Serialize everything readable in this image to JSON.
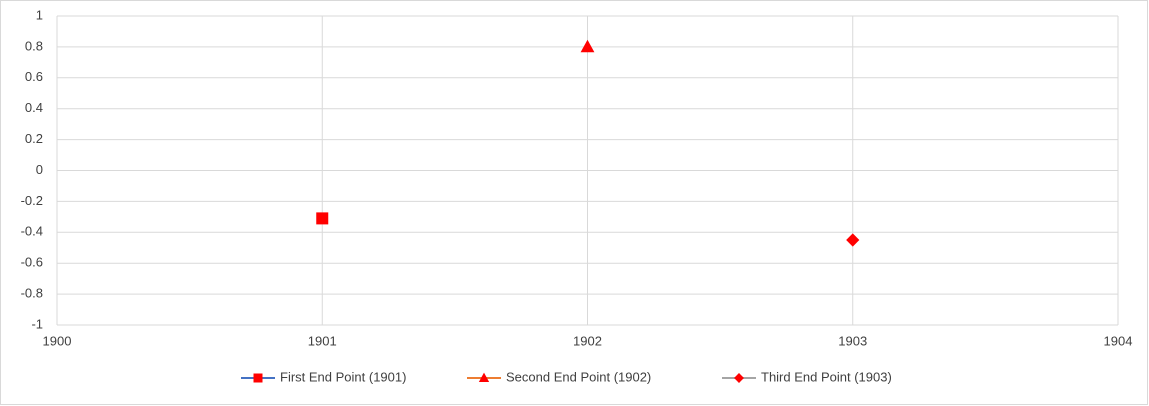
{
  "chart_data": {
    "type": "scatter",
    "xlim": [
      1900,
      1904
    ],
    "xticks": [
      1900,
      1901,
      1902,
      1903,
      1904
    ],
    "ylim": [
      -1,
      1
    ],
    "yticks": [
      -1,
      -0.8,
      -0.6,
      -0.4,
      -0.2,
      0,
      0.2,
      0.4,
      0.6,
      0.8,
      1
    ],
    "grid": true,
    "legend": "bottom",
    "series": [
      {
        "name": "First End Point (1901)",
        "color": "#4472c4",
        "marker_color": "#ff0000",
        "marker": "square",
        "x": [
          1901
        ],
        "values": [
          -0.31
        ]
      },
      {
        "name": "Second End Point (1902)",
        "color": "#ed7d31",
        "marker_color": "#ff0000",
        "marker": "triangle",
        "x": [
          1902
        ],
        "values": [
          0.8
        ]
      },
      {
        "name": "Third End Point (1903)",
        "color": "#a5a5a5",
        "marker_color": "#ff0000",
        "marker": "diamond",
        "x": [
          1903
        ],
        "values": [
          -0.45
        ]
      }
    ]
  }
}
